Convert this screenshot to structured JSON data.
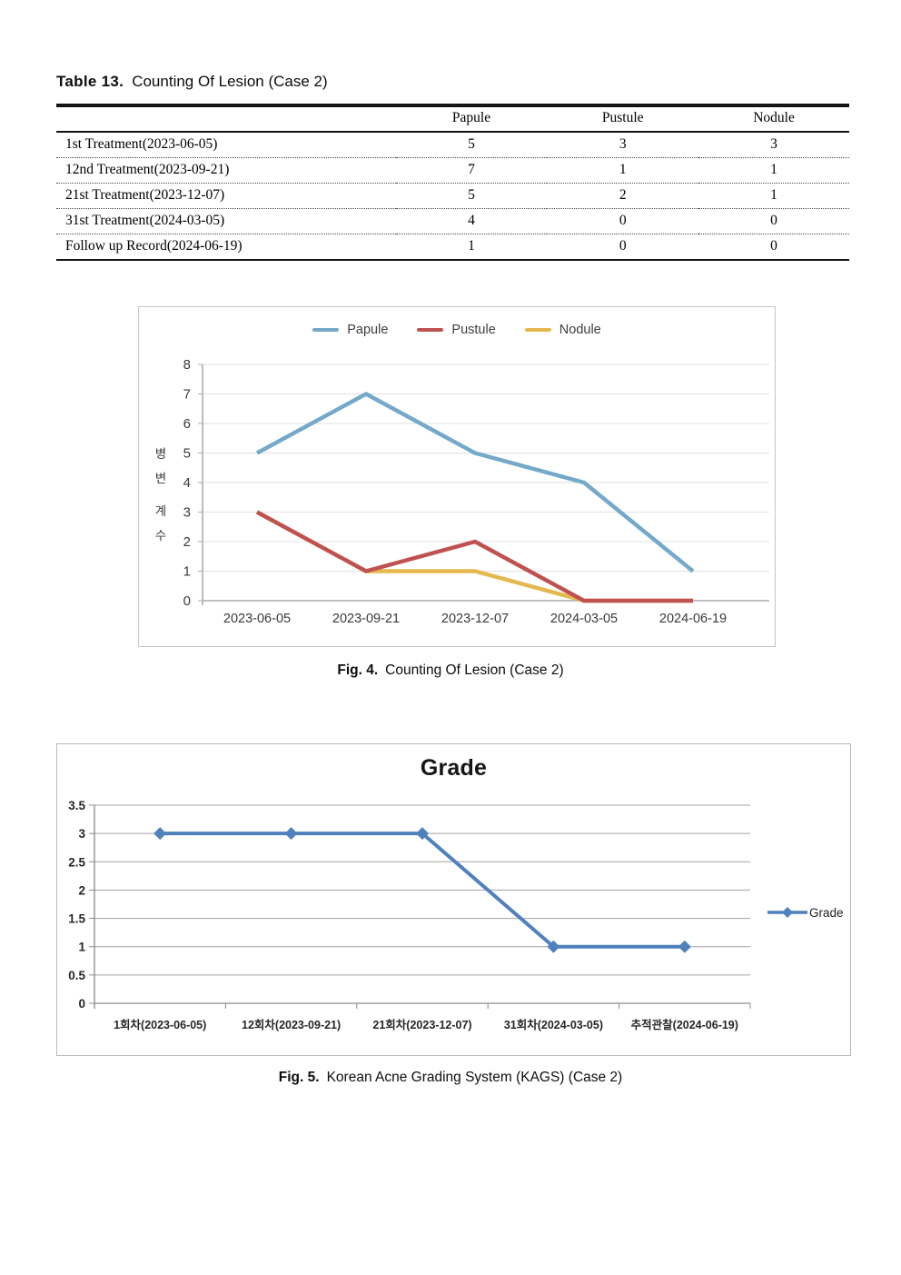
{
  "page": {
    "background": "#ffffff"
  },
  "table": {
    "title_prefix": "Table 13.",
    "title_text": "Counting Of Lesion (Case 2)",
    "columns": [
      "",
      "Papule",
      "Pustule",
      "Nodule"
    ],
    "rows": [
      {
        "label": "1st Treatment(2023-06-05)",
        "values": [
          "5",
          "3",
          "3"
        ]
      },
      {
        "label": "12nd Treatment(2023-09-21)",
        "values": [
          "7",
          "1",
          "1"
        ]
      },
      {
        "label": "21st Treatment(2023-12-07)",
        "values": [
          "5",
          "2",
          "1"
        ]
      },
      {
        "label": "31st Treatment(2024-03-05)",
        "values": [
          "4",
          "0",
          "0"
        ]
      },
      {
        "label": "Follow up Record(2024-06-19)",
        "values": [
          "1",
          "0",
          "0"
        ]
      }
    ]
  },
  "fig4_caption": {
    "prefix": "Fig. 4.",
    "text": "Counting Of Lesion (Case 2)"
  },
  "fig5_caption": {
    "prefix": "Fig. 5.",
    "text": "Korean Acne Grading System (KAGS) (Case 2)"
  },
  "chart_data": [
    {
      "id": "fig4",
      "type": "line",
      "title": "",
      "categories": [
        "2023-06-05",
        "2023-09-21",
        "2023-12-07",
        "2024-03-05",
        "2024-06-19"
      ],
      "series": [
        {
          "name": "Papule",
          "values": [
            5,
            7,
            5,
            4,
            1
          ],
          "color": "#74A9CA"
        },
        {
          "name": "Pustule",
          "values": [
            3,
            1,
            2,
            0,
            0
          ],
          "color": "#BF5250"
        },
        {
          "name": "Nodule",
          "values": [
            3,
            1,
            1,
            0,
            0
          ],
          "color": "#E4B84F"
        }
      ],
      "xlabel": "",
      "ylabel": "병변 계수",
      "ylim": [
        0,
        8
      ],
      "ytick_step": 1,
      "grid": true,
      "legend_position": "top"
    },
    {
      "id": "fig5",
      "type": "line",
      "title": "Grade",
      "categories": [
        "1회차(2023-06-05)",
        "12회차(2023-09-21)",
        "21회차(2023-12-07)",
        "31회차(2024-03-05)",
        "추적관찰(2024-06-19)"
      ],
      "series": [
        {
          "name": "Grade",
          "values": [
            3,
            3,
            3,
            1,
            1
          ],
          "color": "#4F81BD",
          "marker": "diamond"
        }
      ],
      "xlabel": "",
      "ylabel": "",
      "ylim": [
        0,
        3.5
      ],
      "ytick_step": 0.5,
      "grid": true,
      "legend_position": "right"
    }
  ]
}
